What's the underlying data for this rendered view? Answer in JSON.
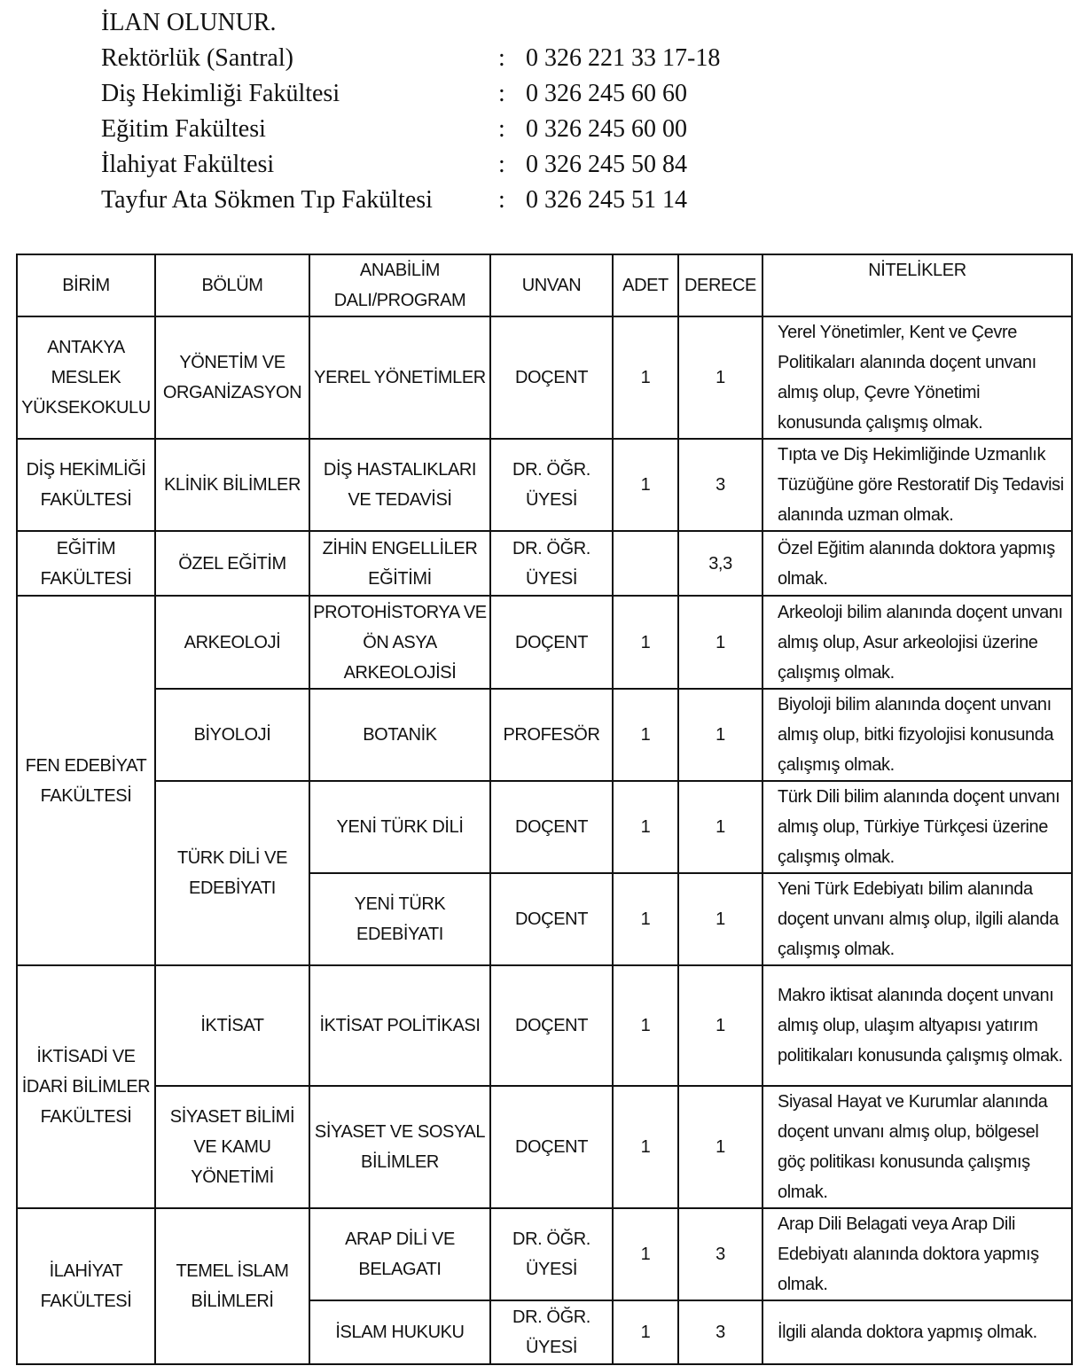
{
  "intro": {
    "heading": "İLAN OLUNUR.",
    "contacts": [
      {
        "name": "Rektörlük (Santral)",
        "sep": ":",
        "phone": "0 326 221 33 17-18"
      },
      {
        "name": "Diş Hekimliği Fakültesi",
        "sep": ":",
        "phone": "0 326 245 60 60"
      },
      {
        "name": "Eğitim Fakültesi",
        "sep": ":",
        "phone": "0 326 245 60 00"
      },
      {
        "name": "İlahiyat Fakültesi",
        "sep": ":",
        "phone": "0 326 245 50 84"
      },
      {
        "name": "Tayfur Ata Sökmen Tıp Fakültesi",
        "sep": ":",
        "phone": "0 326 245 51 14"
      }
    ]
  },
  "table": {
    "headers": [
      "BİRİM",
      "BÖLÜM",
      "ANABİLİM DALI/PROGRAM",
      "UNVAN",
      "ADET",
      "DERECE",
      "NİTELİKLER"
    ],
    "rows": [
      {
        "h": 137,
        "birim": {
          "text": "ANTAKYA MESLEK YÜKSEKOKULU",
          "span": 1
        },
        "bolum": {
          "text": "YÖNETİM VE ORGANİZASYON",
          "span": 1
        },
        "anabilim": "YEREL YÖNETİMLER",
        "unvan": "DOÇENT",
        "adet": "1",
        "derece": "1",
        "nitelik": "Yerel Yönetimler, Kent ve Çevre Politikaları alanında doçent unvanı almış olup, Çevre Yönetimi konusunda çalışmış olmak."
      },
      {
        "h": 102,
        "birim": {
          "text": "DİŞ HEKİMLİĞİ FAKÜLTESİ",
          "span": 1
        },
        "bolum": {
          "text": "KLİNİK BİLİMLER",
          "span": 1
        },
        "anabilim": "DİŞ HASTALIKLARI VE TEDAVİSİ",
        "unvan": "DR. ÖĞR. ÜYESİ",
        "adet": "1",
        "derece": "3",
        "nitelik": "Tıpta ve Diş Hekimliğinde Uzmanlık Tüzüğüne göre Restoratif Diş Tedavisi alanında uzman olmak."
      },
      {
        "h": 73,
        "birim": {
          "text": "EĞİTİM FAKÜLTESİ",
          "span": 1
        },
        "bolum": {
          "text": "ÖZEL EĞİTİM",
          "span": 1
        },
        "anabilim": "ZİHİN ENGELLİLER EĞİTİMİ",
        "unvan": "DR. ÖĞR. ÜYESİ",
        "adet": "",
        "derece": "3,3",
        "nitelik": "Özel Eğitim alanında doktora yapmış olmak."
      },
      {
        "h": 105,
        "birim": {
          "text": "FEN EDEBİYAT FAKÜLTESİ",
          "span": 4
        },
        "bolum": {
          "text": "ARKEOLOJİ",
          "span": 1
        },
        "anabilim": "PROTOHİSTORYA VE ÖN ASYA ARKEOLOJİSİ",
        "unvan": "DOÇENT",
        "adet": "1",
        "derece": "1",
        "nitelik": "Arkeoloji bilim alanında doçent unvanı almış olup, Asur arkeolojisi üzerine çalışmış olmak."
      },
      {
        "h": 103,
        "bolum": {
          "text": "BİYOLOJİ",
          "span": 1
        },
        "anabilim": "BOTANİK",
        "unvan": "PROFESÖR",
        "adet": "1",
        "derece": "1",
        "nitelik": "Biyoloji bilim alanında doçent unvanı almış olup, bitki fizyolojisi konusunda çalışmış olmak."
      },
      {
        "h": 102,
        "bolum": {
          "text": "TÜRK DİLİ VE EDEBİYATI",
          "span": 2
        },
        "anabilim": "YENİ TÜRK DİLİ",
        "unvan": "DOÇENT",
        "adet": "1",
        "derece": "1",
        "nitelik": "Türk Dili bilim alanında doçent unvanı almış olup, Türkiye Türkçesi üzerine çalışmış olmak."
      },
      {
        "h": 102,
        "anabilim": "YENİ TÜRK EDEBİYATI",
        "unvan": "DOÇENT",
        "adet": "1",
        "derece": "1",
        "nitelik": "Yeni Türk Edebiyatı bilim alanında doçent unvanı almış olup, ilgili alanda çalışmış olmak."
      },
      {
        "h": 136,
        "birim": {
          "text": "İKTİSADİ VE İDARİ BİLİMLER FAKÜLTESİ",
          "span": 2
        },
        "bolum": {
          "text": "İKTİSAT",
          "span": 1
        },
        "anabilim": "İKTİSAT POLİTİKASI",
        "unvan": "DOÇENT",
        "adet": "1",
        "derece": "1",
        "nitelik": "Makro iktisat alanında doçent unvanı almış olup, ulaşım altyapısı yatırım politikaları konusunda çalışmış olmak."
      },
      {
        "h": 136,
        "bolum": {
          "text": "SİYASET BİLİMİ VE KAMU YÖNETİMİ",
          "span": 1
        },
        "anabilim": "SİYASET VE SOSYAL BİLİMLER",
        "unvan": "DOÇENT",
        "adet": "1",
        "derece": "1",
        "nitelik": "Siyasal Hayat ve Kurumlar alanında doçent unvanı almış olup, bölgesel göç politikası konusunda çalışmış olmak."
      },
      {
        "h": 103,
        "birim": {
          "text": "İLAHİYAT FAKÜLTESİ",
          "span": 2
        },
        "bolum": {
          "text": "TEMEL İSLAM BİLİMLERİ",
          "span": 2
        },
        "anabilim": "ARAP DİLİ VE BELAGATI",
        "unvan": "DR. ÖĞR. ÜYESİ",
        "adet": "1",
        "derece": "3",
        "nitelik": "Arap Dili Belagati veya Arap Dili Edebiyatı alanında doktora yapmış olmak."
      },
      {
        "h": 72,
        "anabilim": "İSLAM HUKUKU",
        "unvan": "DR. ÖĞR. ÜYESİ",
        "adet": "1",
        "derece": "3",
        "nitelik": "İlgili alanda doktora yapmış olmak."
      }
    ]
  }
}
